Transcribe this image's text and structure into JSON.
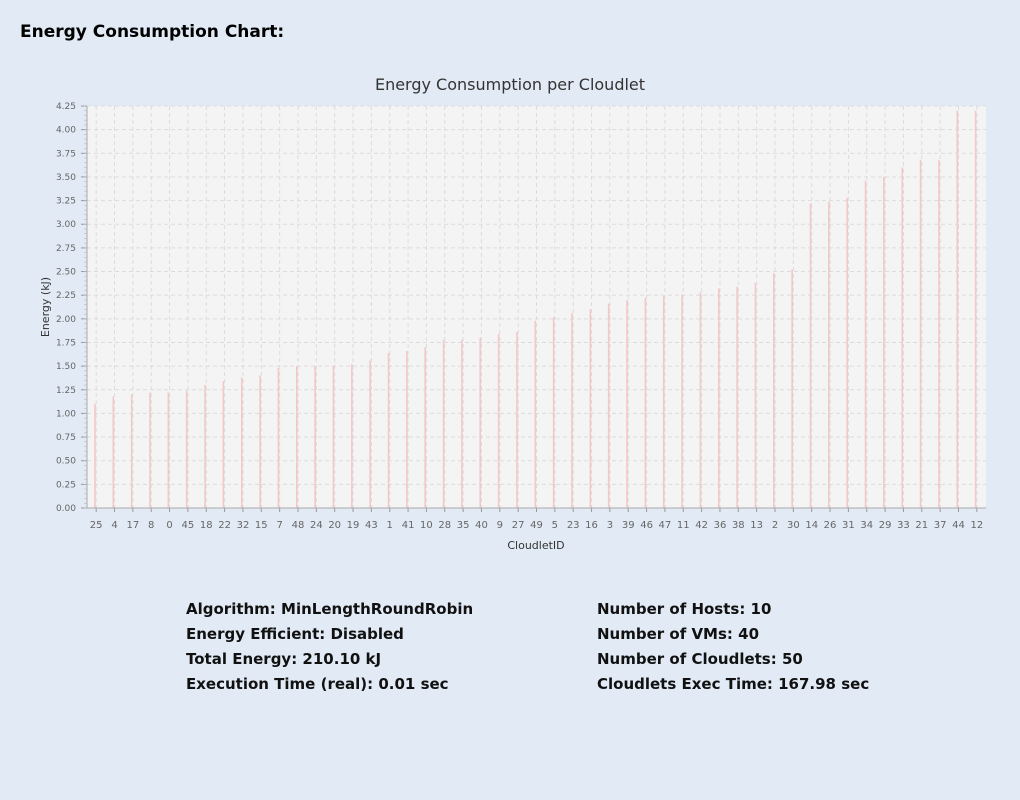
{
  "page": {
    "heading": "Energy Consumption Chart:"
  },
  "chart_data": {
    "type": "bar",
    "title": "Energy Consumption per Cloudlet",
    "xlabel": "CloudletID",
    "ylabel": "Energy (kJ)",
    "ylim": [
      0,
      4.25
    ],
    "yticks": [
      0.0,
      0.25,
      0.5,
      0.75,
      1.0,
      1.25,
      1.5,
      1.75,
      2.0,
      2.25,
      2.5,
      2.75,
      3.0,
      3.25,
      3.5,
      3.75,
      4.0,
      4.25
    ],
    "ytick_labels": [
      "0.00",
      "0.25",
      "0.50",
      "0.75",
      "1.00",
      "1.25",
      "1.50",
      "1.75",
      "2.00",
      "2.25",
      "2.50",
      "2.75",
      "3.00",
      "3.25",
      "3.50",
      "3.75",
      "4.00",
      "4.25"
    ],
    "grid": true,
    "bar_color": "#f2c8c8",
    "plot_background": "#f4f4f4",
    "categories": [
      "25",
      "4",
      "17",
      "8",
      "0",
      "45",
      "18",
      "22",
      "32",
      "15",
      "7",
      "48",
      "24",
      "20",
      "19",
      "43",
      "1",
      "41",
      "10",
      "28",
      "35",
      "40",
      "9",
      "27",
      "49",
      "5",
      "23",
      "16",
      "3",
      "39",
      "46",
      "47",
      "11",
      "42",
      "36",
      "38",
      "13",
      "2",
      "30",
      "14",
      "26",
      "31",
      "34",
      "29",
      "33",
      "21",
      "37",
      "44",
      "12"
    ],
    "values": [
      1.1,
      1.18,
      1.2,
      1.22,
      1.22,
      1.24,
      1.3,
      1.34,
      1.38,
      1.4,
      1.48,
      1.5,
      1.5,
      1.5,
      1.52,
      1.56,
      1.64,
      1.66,
      1.7,
      1.78,
      1.78,
      1.8,
      1.84,
      1.86,
      1.98,
      2.02,
      2.06,
      2.1,
      2.16,
      2.2,
      2.22,
      2.24,
      2.26,
      2.28,
      2.32,
      2.34,
      2.38,
      2.48,
      2.52,
      3.22,
      3.24,
      3.28,
      3.46,
      3.5,
      3.6,
      3.68,
      3.68,
      4.2,
      4.2
    ]
  },
  "stats": {
    "left": [
      "Algorithm: MinLengthRoundRobin",
      "Energy Efficient: Disabled",
      "Total Energy: 210.10 kJ",
      "Execution Time (real): 0.01 sec"
    ],
    "right": [
      "Number of Hosts: 10",
      "Number of VMs: 40",
      "Number of Cloudlets: 50",
      "Cloudlets Exec Time: 167.98 sec"
    ]
  }
}
